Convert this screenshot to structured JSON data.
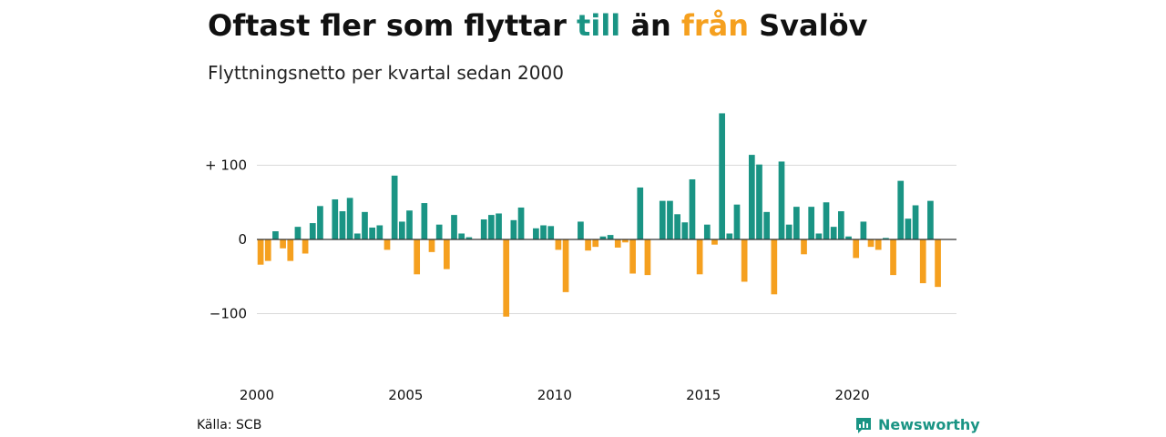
{
  "header": {
    "title_part1": "Oftast fler som flyttar ",
    "title_pos": "till",
    "title_mid": " än ",
    "title_neg": "från",
    "title_end": " Svalöv",
    "subtitle": "Flyttningsnetto per kvartal sedan 2000"
  },
  "footer": {
    "source": "Källa: SCB",
    "brand": "Newsworthy"
  },
  "colors": {
    "positive": "#1a9484",
    "negative": "#f5a01f",
    "grid": "#d9d9d9",
    "text": "#111111"
  },
  "icons": {
    "brand_logo": "newsworthy-logo-icon"
  },
  "chart_data": {
    "type": "bar",
    "title": "Oftast fler som flyttar till än från Svalöv",
    "subtitle": "Flyttningsnetto per kvartal sedan 2000",
    "xlabel": "",
    "ylabel": "",
    "x_ticks": [
      2000,
      2005,
      2010,
      2015,
      2020
    ],
    "x_tick_labels": [
      "2000",
      "2005",
      "2010",
      2015,
      "2020"
    ],
    "y_ticks": [
      100,
      0,
      -100
    ],
    "y_tick_labels": [
      "+ 100",
      "0",
      "−100"
    ],
    "ylim": [
      -175,
      170
    ],
    "xlim": [
      2000,
      2023.5
    ],
    "grid": true,
    "quarter_start_year": 2000,
    "values": [
      -34,
      -29,
      11,
      -12,
      -29,
      17,
      -19,
      22,
      45,
      0,
      54,
      38,
      56,
      8,
      37,
      16,
      19,
      -14,
      86,
      24,
      39,
      -47,
      49,
      -17,
      20,
      -40,
      33,
      8,
      3,
      0,
      27,
      33,
      35,
      -104,
      26,
      43,
      0,
      15,
      19,
      18,
      -14,
      -71,
      0,
      24,
      -15,
      -10,
      4,
      6,
      -11,
      -4,
      -46,
      70,
      -48,
      0,
      52,
      52,
      34,
      23,
      81,
      -47,
      20,
      -7,
      170,
      8,
      47,
      -57,
      114,
      101,
      37,
      -74,
      105,
      20,
      44,
      -20,
      44,
      8,
      50,
      17,
      38,
      4,
      -25,
      24,
      -10,
      -14,
      2,
      -48,
      79,
      28,
      46,
      -59,
      52,
      -64
    ]
  }
}
